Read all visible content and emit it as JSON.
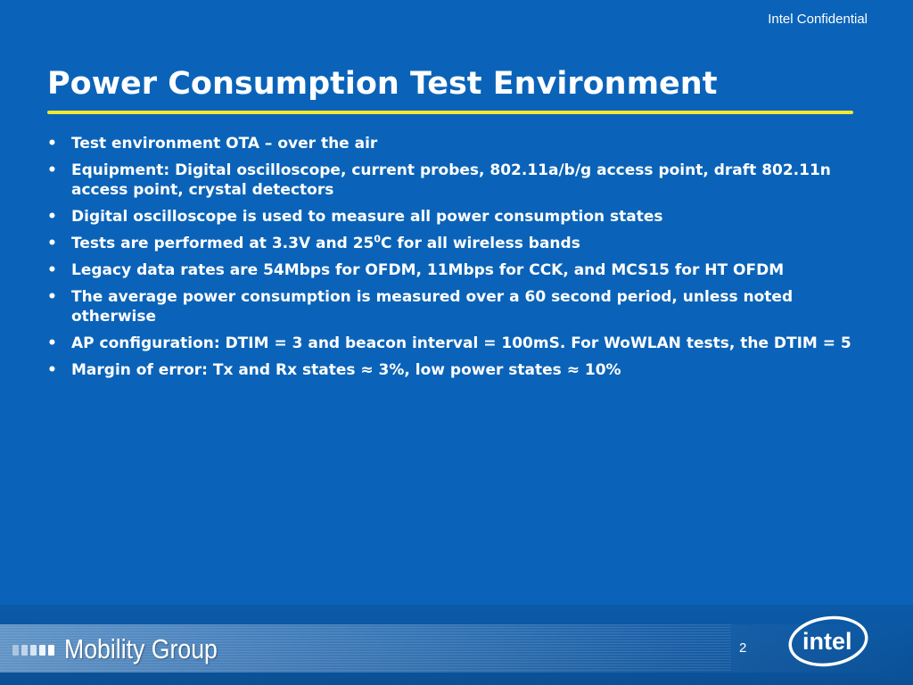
{
  "header": {
    "confidential_label": "Intel Confidential"
  },
  "title": "Power Consumption Test Environment",
  "bullets": [
    {
      "text": "Test environment OTA – over the air"
    },
    {
      "text": "Equipment: Digital oscilloscope, current probes, 802.11a/b/g access point, draft 802.11n access point, crystal detectors"
    },
    {
      "text": "Digital oscilloscope is used to measure all power consumption states"
    },
    {
      "text_before": "Tests are performed at 3.3V and 25",
      "superscript": "0",
      "text_after": "C for all wireless bands"
    },
    {
      "text": "Legacy data rates are 54Mbps for OFDM, 11Mbps for CCK, and MCS15 for HT OFDM"
    },
    {
      "text": "The average power consumption is measured over a 60 second period, unless noted otherwise"
    },
    {
      "text": "AP configuration: DTIM = 3 and beacon interval = 100mS. For WoWLAN tests, the DTIM = 5"
    },
    {
      "text": "Margin of error: Tx and Rx states ≈ 3%, low power states ≈ 10%"
    }
  ],
  "bullet_symbol": "•",
  "footer": {
    "group_name": "Mobility Group",
    "page_number": "2",
    "logo_text": "intel"
  },
  "colors": {
    "background": "#0a63b8",
    "title_rule": "#f2e830",
    "text": "#ffffff"
  },
  "icons": {
    "bullet": "bullet-dot-icon",
    "group_mark": "mobility-group-bars-icon",
    "logo": "intel-logo-icon"
  }
}
